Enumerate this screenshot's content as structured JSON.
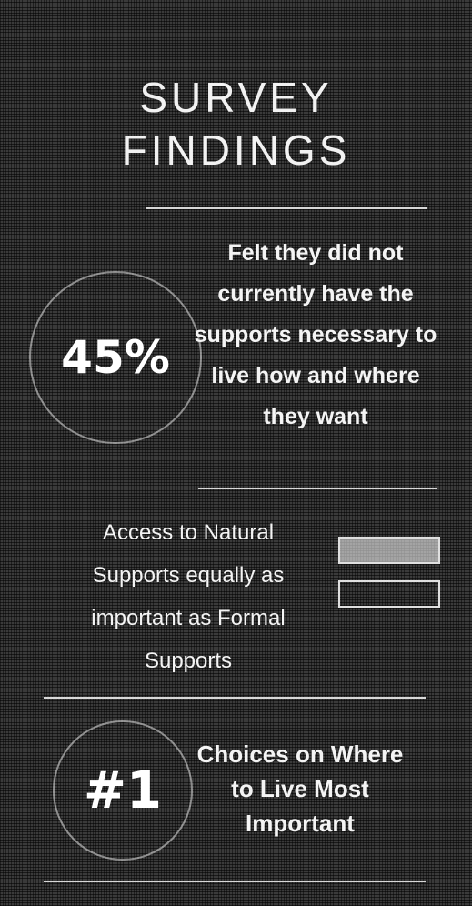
{
  "header": {
    "title_line1": "SURVEY",
    "title_line2": "FINDINGS"
  },
  "finding1": {
    "stat": "45%",
    "text": "Felt they did not currently have the supports necessary to live how and where they want"
  },
  "finding2": {
    "text": "Access to Natural Supports equally as important as Formal Supports",
    "comparison": [
      {
        "kind": "filled",
        "value": 1
      },
      {
        "kind": "outline",
        "value": 1
      }
    ]
  },
  "finding3": {
    "stat": "#1",
    "text": "Choices on Where to Live Most Important"
  }
}
